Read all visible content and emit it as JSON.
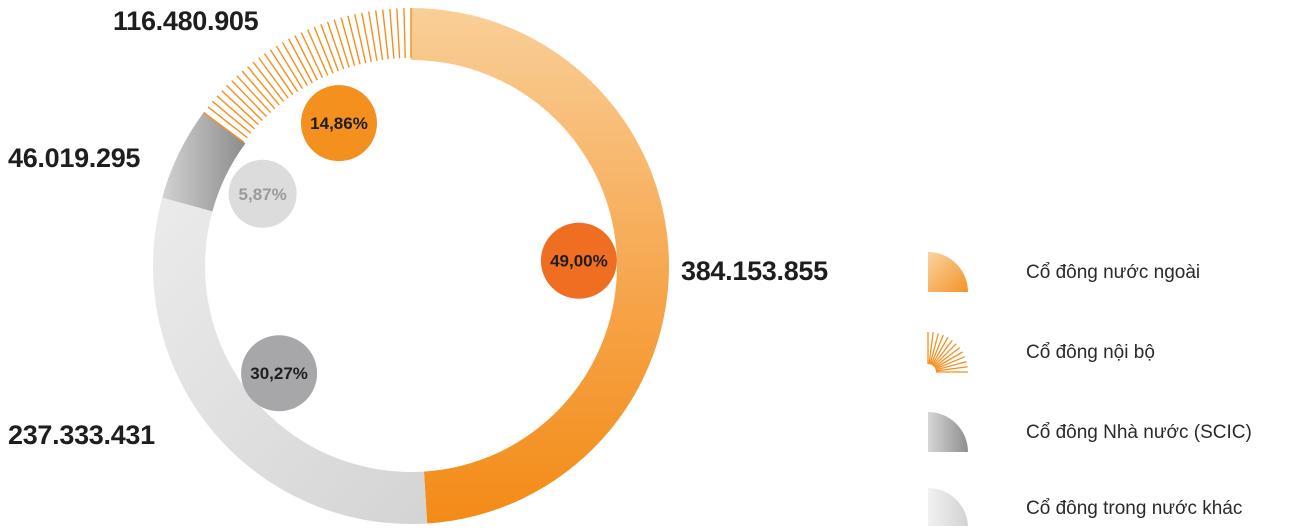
{
  "chart_data": {
    "type": "pie",
    "categories": [
      "Cổ đông nước ngoài",
      "Cổ đông nội bộ",
      "Cổ đông Nhà nước (SCIC)",
      "Cổ đông trong nước khác"
    ],
    "values": [
      384153855,
      116480905,
      46019295,
      237333431
    ],
    "value_labels": [
      "384.153.855",
      "116.480.905",
      "46.019.295",
      "237.333.431"
    ],
    "percent_labels": [
      "49,00%",
      "14,86%",
      "5,87%",
      "30,27%"
    ],
    "percents": [
      49.0,
      14.86,
      5.87,
      30.27
    ],
    "legend_position": "right",
    "colors": {
      "foreign": "#f4901e",
      "foreign_light": "#f9c98e",
      "foreign_bubble": "#ef6e22",
      "insider": "#f4901e",
      "insider_bubble": "#f4901e",
      "scic": "#9a9a9a",
      "scic_light": "#d0d0d0",
      "scic_bubble": "#dcdcdc",
      "other": "#d9d9d9",
      "other_light": "#ececec",
      "other_bubble": "#a7a7a9"
    }
  },
  "legend": {
    "items": [
      {
        "label": "Cổ đông nước ngoài",
        "icon": "orange-gradient-quarter-icon"
      },
      {
        "label": "Cổ đông nội bộ",
        "icon": "orange-striped-fan-icon"
      },
      {
        "label": "Cổ đông Nhà nước (SCIC)",
        "icon": "gray-gradient-quarter-icon"
      },
      {
        "label": "Cổ đông trong nước khác",
        "icon": "light-gray-quarter-icon"
      }
    ]
  }
}
